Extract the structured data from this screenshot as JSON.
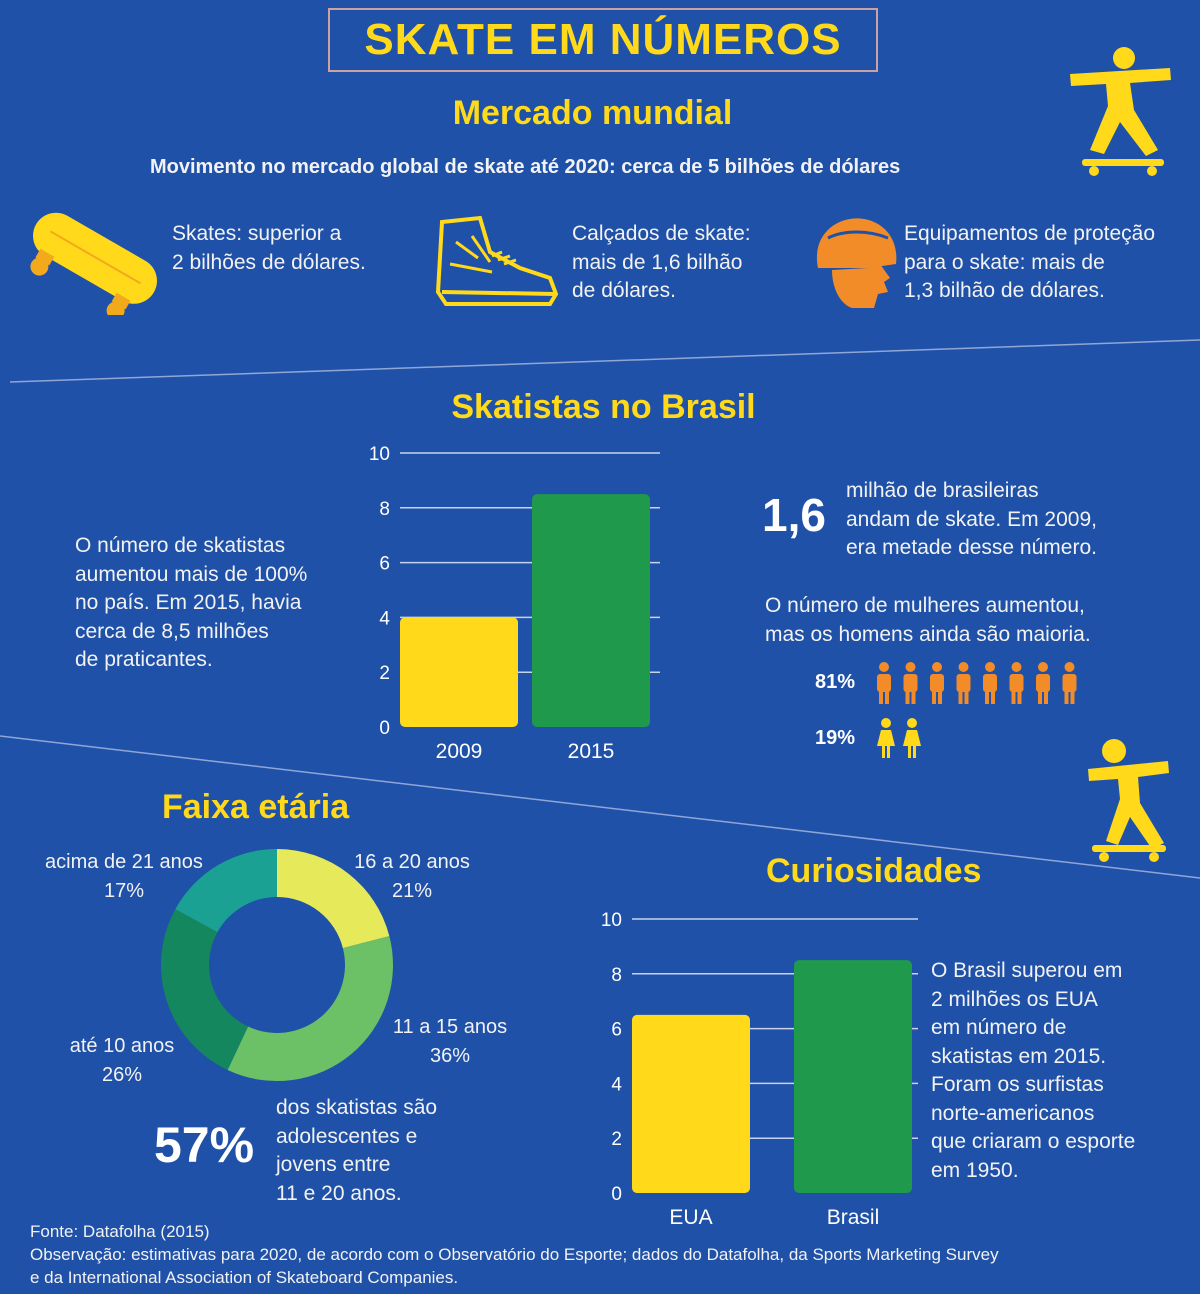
{
  "title": "SKATE EM NÚMEROS",
  "mercado": {
    "heading": "Mercado mundial",
    "subtitle": "Movimento no mercado global de skate até 2020: cerca de 5 bilhões de dólares",
    "items": [
      {
        "icon": "skateboard-icon",
        "lines": [
          "Skates: superior a",
          "2 bilhões de dólares."
        ]
      },
      {
        "icon": "sneaker-icon",
        "lines": [
          "Calçados de skate:",
          "mais de 1,6 bilhão",
          "de dólares."
        ]
      },
      {
        "icon": "helmet-icon",
        "lines": [
          "Equipamentos de proteção",
          "para o skate:  mais de",
          "1,3 bilhão de dólares."
        ]
      }
    ]
  },
  "brasil": {
    "heading": "Skatistas no Brasil",
    "left_text": [
      "O número de skatistas",
      "aumentou mais de 100%",
      "no país. Em 2015, havia",
      "cerca de 8,5 milhões",
      "de praticantes."
    ],
    "big_number": "1,6",
    "right_text": [
      "milhão de brasileiras",
      "andam de skate. Em 2009,",
      "era metade desse número."
    ],
    "women_text": [
      "O número de mulheres aumentou,",
      "mas os homens ainda são maioria."
    ],
    "men_pct": "81%",
    "women_pct": "19%",
    "men_icons": 8,
    "women_icons": 2
  },
  "faixa": {
    "heading": "Faixa etária",
    "big_pct": "57%",
    "note": [
      "dos skatistas são",
      "adolescentes e",
      "jovens entre",
      "11 e 20 anos."
    ]
  },
  "curiosidades": {
    "heading": "Curiosidades",
    "text": [
      "O Brasil superou em",
      "2 milhões os EUA",
      "em número de",
      "skatistas em 2015.",
      "Foram os surfistas",
      "norte-americanos",
      "que criaram o esporte",
      "em 1950."
    ]
  },
  "footer": {
    "source": "Fonte: Datafolha (2015)",
    "note_lines": [
      "Observação: estimativas para 2020, de acordo com o Observatório do Esporte; dados do Datafolha, da Sports Marketing Survey",
      "e da International Association of Skateboard Companies."
    ]
  },
  "colors": {
    "background": "#1f51a8",
    "yellow": "#ffd91a",
    "green": "#1f9a4c",
    "orange": "#f28c28"
  },
  "chart_data": [
    {
      "type": "bar",
      "categories": [
        "2009",
        "2015"
      ],
      "values": [
        4,
        8.5
      ],
      "colors": [
        "#ffd91a",
        "#1f9a4c"
      ],
      "ylim": [
        0,
        10
      ],
      "yticks": [
        0,
        2,
        4,
        6,
        8,
        10
      ],
      "grid": true
    },
    {
      "type": "pie",
      "labels": [
        "16 a 20 anos",
        "11 a 15 anos",
        "até 10 anos",
        "acima de 21 anos"
      ],
      "values": [
        21,
        36,
        26,
        17
      ],
      "value_labels": [
        "21%",
        "36%",
        "26%",
        "17%"
      ],
      "colors": [
        "#e6ea5a",
        "#6cc065",
        "#14875e",
        "#1aa193"
      ]
    },
    {
      "type": "bar",
      "categories": [
        "EUA",
        "Brasil"
      ],
      "values": [
        6.5,
        8.5
      ],
      "colors": [
        "#ffd91a",
        "#1f9a4c"
      ],
      "ylim": [
        0,
        10
      ],
      "yticks": [
        0,
        2,
        4,
        6,
        8,
        10
      ],
      "grid": true
    }
  ]
}
